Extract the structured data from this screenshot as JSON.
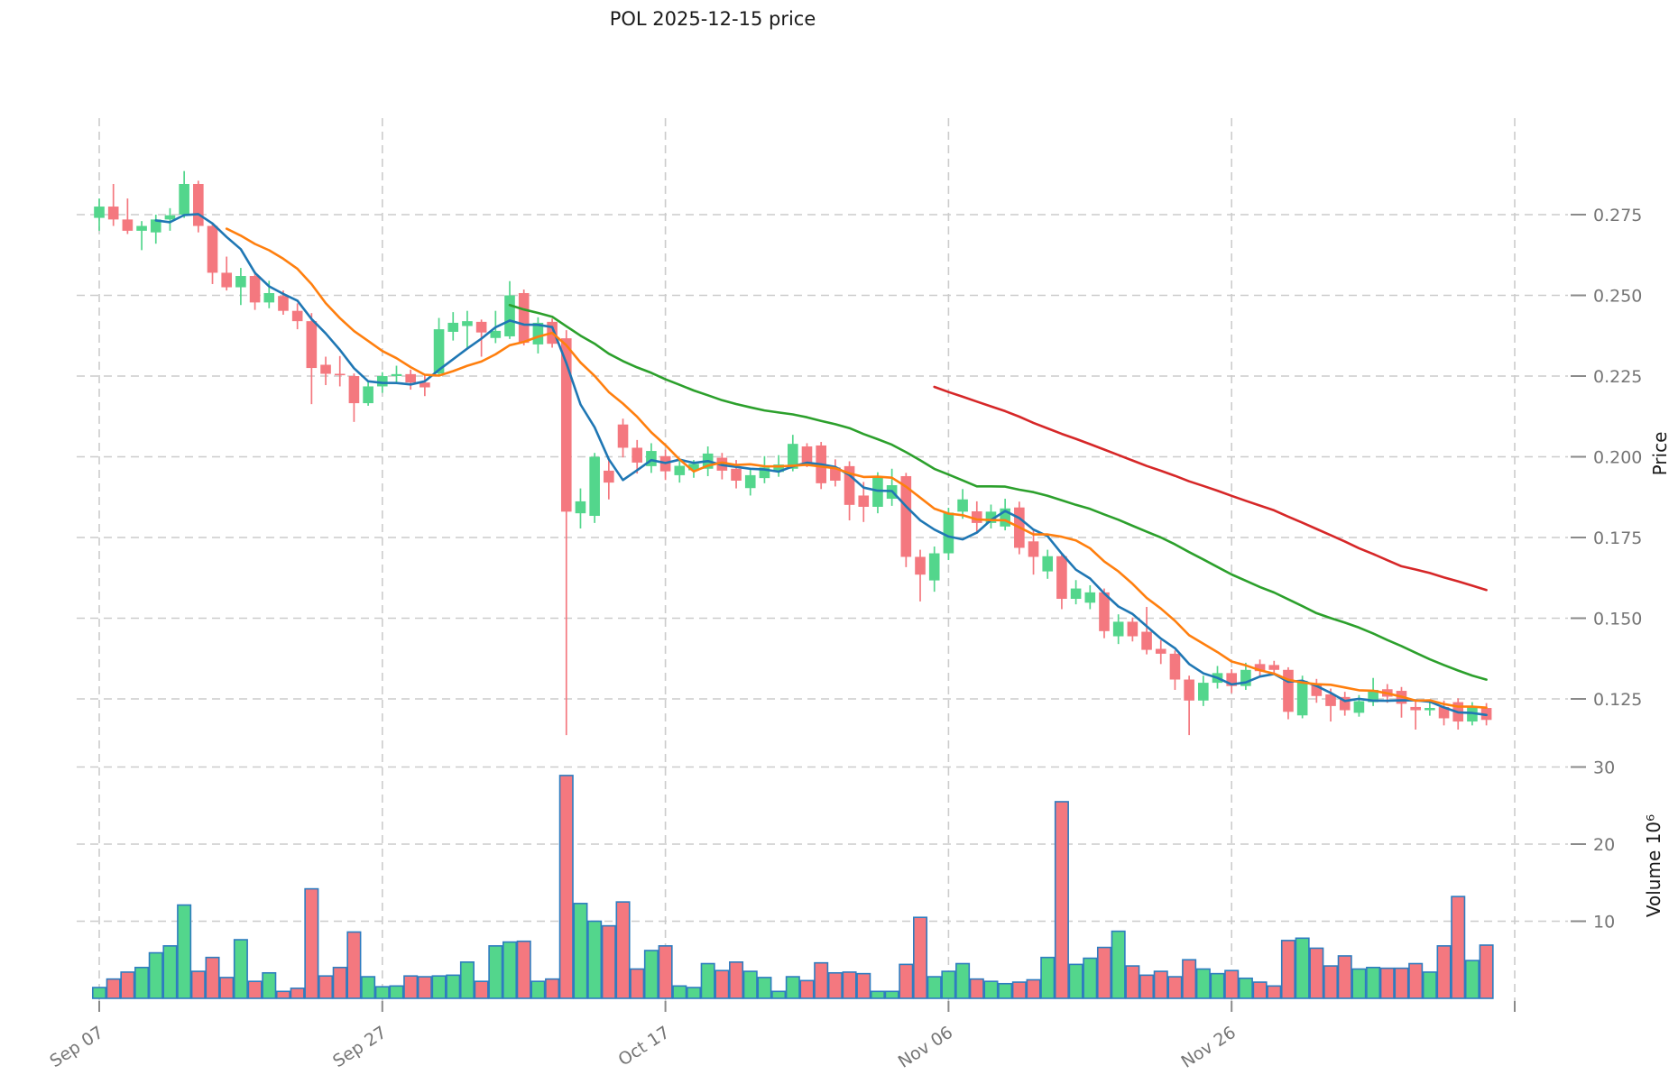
{
  "title": "POL  2025-12-15  price",
  "axes": {
    "price_axis_title": "Price",
    "volume_axis_title": "Volume  10⁶"
  },
  "chart_data": {
    "type": "candlestick-with-volume",
    "symbol": "POL",
    "as_of_date": "2025-12-15",
    "start_date": "2025-09-07",
    "interval": "1d",
    "price_ticks": [
      "0.275",
      "0.250",
      "0.225",
      "0.200",
      "0.175",
      "0.150",
      "0.125"
    ],
    "price_tick_values": [
      0.275,
      0.25,
      0.225,
      0.2,
      0.175,
      0.15,
      0.125
    ],
    "volume_ticks": [
      "10",
      "20",
      "30"
    ],
    "volume_tick_values": [
      10,
      20,
      30
    ],
    "x_ticks": [
      {
        "index": 0,
        "label": "Sep 07"
      },
      {
        "index": 20,
        "label": "Sep 27"
      },
      {
        "index": 40,
        "label": "Oct 17"
      },
      {
        "index": 60,
        "label": "Nov 06"
      },
      {
        "index": 80,
        "label": "Nov 26"
      },
      {
        "index": 100,
        "label": ""
      }
    ],
    "moving_averages": [
      {
        "name": "ma5",
        "window": 5,
        "color": "#1f77b4"
      },
      {
        "name": "ma10",
        "window": 10,
        "color": "#ff7f0e"
      },
      {
        "name": "ma30",
        "window": 30,
        "color": "#2ca02c"
      },
      {
        "name": "ma60",
        "window": 60,
        "color": "#d62728"
      }
    ],
    "colors": {
      "up": "#53d68c",
      "down": "#f4787f",
      "volume_edge": "#2e7cc0",
      "grid": "#cccccc",
      "tick_mark": "#8a8a8a",
      "tick_label": "#757575"
    },
    "ylim_price": [
      0.105,
      0.295
    ],
    "ylim_volume": [
      0,
      32
    ],
    "grid": true,
    "candles_ohlcv": [
      [
        0.274,
        0.28,
        0.27,
        0.2775,
        1.4
      ],
      [
        0.2775,
        0.2845,
        0.2715,
        0.2735,
        2.5
      ],
      [
        0.2735,
        0.28,
        0.269,
        0.27,
        3.4
      ],
      [
        0.27,
        0.273,
        0.264,
        0.2715,
        4.0
      ],
      [
        0.2695,
        0.275,
        0.266,
        0.2735,
        5.9
      ],
      [
        0.2735,
        0.277,
        0.27,
        0.2748,
        6.8
      ],
      [
        0.275,
        0.2885,
        0.274,
        0.2845,
        12.1
      ],
      [
        0.2845,
        0.2855,
        0.2695,
        0.2715,
        3.5
      ],
      [
        0.2715,
        0.2725,
        0.2535,
        0.257,
        5.3
      ],
      [
        0.257,
        0.262,
        0.2515,
        0.2525,
        2.7
      ],
      [
        0.2525,
        0.2585,
        0.247,
        0.256,
        7.6
      ],
      [
        0.256,
        0.2575,
        0.2455,
        0.2478,
        2.2
      ],
      [
        0.2478,
        0.2545,
        0.246,
        0.2507,
        3.3
      ],
      [
        0.2498,
        0.2515,
        0.244,
        0.2452,
        0.9
      ],
      [
        0.2452,
        0.2475,
        0.2395,
        0.242,
        1.3
      ],
      [
        0.242,
        0.2445,
        0.2163,
        0.2275,
        14.2
      ],
      [
        0.2285,
        0.231,
        0.2222,
        0.2257,
        2.9
      ],
      [
        0.2257,
        0.2312,
        0.2218,
        0.2253,
        4.0
      ],
      [
        0.225,
        0.2258,
        0.2108,
        0.2166,
        8.6
      ],
      [
        0.2166,
        0.2232,
        0.2158,
        0.2218,
        2.8
      ],
      [
        0.2218,
        0.2262,
        0.2198,
        0.225,
        1.5
      ],
      [
        0.225,
        0.2282,
        0.2228,
        0.2256,
        1.6
      ],
      [
        0.2256,
        0.227,
        0.2208,
        0.223,
        2.9
      ],
      [
        0.223,
        0.2252,
        0.2188,
        0.2215,
        2.8
      ],
      [
        0.2258,
        0.243,
        0.225,
        0.2395,
        2.9
      ],
      [
        0.2387,
        0.2448,
        0.236,
        0.2415,
        3.0
      ],
      [
        0.2405,
        0.2452,
        0.2338,
        0.242,
        4.7
      ],
      [
        0.2418,
        0.2425,
        0.231,
        0.2385,
        2.2
      ],
      [
        0.2368,
        0.2452,
        0.2352,
        0.239,
        6.8
      ],
      [
        0.2373,
        0.2544,
        0.2365,
        0.25,
        7.3
      ],
      [
        0.2507,
        0.2518,
        0.2345,
        0.2353,
        7.4
      ],
      [
        0.2348,
        0.2432,
        0.232,
        0.2415,
        2.2
      ],
      [
        0.2418,
        0.2428,
        0.2338,
        0.235,
        2.5
      ],
      [
        0.2367,
        0.2392,
        0.1138,
        0.183,
        28.9
      ],
      [
        0.1825,
        0.1902,
        0.1778,
        0.1862,
        12.3
      ],
      [
        0.1817,
        0.2012,
        0.1795,
        0.2,
        10.0
      ],
      [
        0.1957,
        0.1992,
        0.1868,
        0.192,
        9.4
      ],
      [
        0.21,
        0.2118,
        0.1998,
        0.2028,
        12.5
      ],
      [
        0.2028,
        0.2052,
        0.1948,
        0.1982,
        3.8
      ],
      [
        0.1971,
        0.2042,
        0.195,
        0.2018,
        6.2
      ],
      [
        0.2002,
        0.2022,
        0.1928,
        0.1955,
        6.8
      ],
      [
        0.1943,
        0.1992,
        0.192,
        0.1972,
        1.6
      ],
      [
        0.1958,
        0.199,
        0.1935,
        0.1978,
        1.4
      ],
      [
        0.1963,
        0.2032,
        0.194,
        0.201,
        4.5
      ],
      [
        0.1997,
        0.2012,
        0.193,
        0.1957,
        3.6
      ],
      [
        0.1963,
        0.199,
        0.1902,
        0.1926,
        4.7
      ],
      [
        0.1903,
        0.1962,
        0.188,
        0.1943,
        3.5
      ],
      [
        0.1934,
        0.2002,
        0.1918,
        0.1967,
        2.7
      ],
      [
        0.1953,
        0.2005,
        0.1938,
        0.1976,
        0.9
      ],
      [
        0.1963,
        0.2068,
        0.1955,
        0.204,
        2.8
      ],
      [
        0.2032,
        0.2042,
        0.1968,
        0.1982,
        2.3
      ],
      [
        0.2035,
        0.2046,
        0.19,
        0.1918,
        4.6
      ],
      [
        0.1967,
        0.1992,
        0.1908,
        0.1926,
        3.3
      ],
      [
        0.1971,
        0.1986,
        0.1803,
        0.1851,
        3.4
      ],
      [
        0.188,
        0.1922,
        0.1798,
        0.1845,
        3.2
      ],
      [
        0.1845,
        0.1952,
        0.1825,
        0.1935,
        0.9
      ],
      [
        0.187,
        0.1963,
        0.1848,
        0.1912,
        0.9
      ],
      [
        0.194,
        0.195,
        0.1658,
        0.169,
        4.4
      ],
      [
        0.169,
        0.1712,
        0.1552,
        0.1635,
        10.5
      ],
      [
        0.1617,
        0.1722,
        0.1582,
        0.1701,
        2.8
      ],
      [
        0.1701,
        0.1842,
        0.168,
        0.1827,
        3.5
      ],
      [
        0.183,
        0.19,
        0.1808,
        0.1868,
        4.5
      ],
      [
        0.1831,
        0.1862,
        0.1768,
        0.1795,
        2.5
      ],
      [
        0.1795,
        0.1852,
        0.1778,
        0.183,
        2.2
      ],
      [
        0.1784,
        0.187,
        0.1772,
        0.184,
        1.9
      ],
      [
        0.1843,
        0.1861,
        0.1698,
        0.1718,
        2.1
      ],
      [
        0.1738,
        0.1772,
        0.1635,
        0.169,
        2.4
      ],
      [
        0.1645,
        0.1712,
        0.1622,
        0.1692,
        5.3
      ],
      [
        0.1692,
        0.17,
        0.1528,
        0.156,
        25.5
      ],
      [
        0.156,
        0.1618,
        0.1543,
        0.1592,
        4.4
      ],
      [
        0.1548,
        0.1602,
        0.1528,
        0.158,
        5.2
      ],
      [
        0.158,
        0.1592,
        0.1438,
        0.146,
        6.6
      ],
      [
        0.1444,
        0.1512,
        0.142,
        0.1489,
        8.7
      ],
      [
        0.1489,
        0.1502,
        0.1428,
        0.1444,
        4.2
      ],
      [
        0.1458,
        0.1535,
        0.1388,
        0.1402,
        3.0
      ],
      [
        0.1405,
        0.1432,
        0.1358,
        0.139,
        3.5
      ],
      [
        0.139,
        0.14,
        0.1278,
        0.131,
        2.8
      ],
      [
        0.131,
        0.1322,
        0.1138,
        0.1245,
        5.0
      ],
      [
        0.1245,
        0.1322,
        0.1228,
        0.13,
        3.8
      ],
      [
        0.13,
        0.1352,
        0.1282,
        0.133,
        3.2
      ],
      [
        0.133,
        0.1342,
        0.1268,
        0.129,
        3.6
      ],
      [
        0.129,
        0.1362,
        0.1278,
        0.134,
        2.6
      ],
      [
        0.1358,
        0.1372,
        0.1318,
        0.1336,
        2.1
      ],
      [
        0.1355,
        0.1368,
        0.1328,
        0.134,
        1.6
      ],
      [
        0.134,
        0.1348,
        0.1187,
        0.121,
        7.5
      ],
      [
        0.1199,
        0.1322,
        0.119,
        0.1306,
        7.8
      ],
      [
        0.1298,
        0.1312,
        0.1238,
        0.1259,
        6.5
      ],
      [
        0.1264,
        0.1282,
        0.118,
        0.1228,
        4.2
      ],
      [
        0.1256,
        0.1272,
        0.1198,
        0.1215,
        5.5
      ],
      [
        0.1207,
        0.1262,
        0.1195,
        0.1243,
        3.8
      ],
      [
        0.124,
        0.1315,
        0.1228,
        0.1278,
        4.0
      ],
      [
        0.128,
        0.1296,
        0.1238,
        0.1257,
        3.9
      ],
      [
        0.1275,
        0.1287,
        0.1192,
        0.1235,
        3.9
      ],
      [
        0.1225,
        0.1242,
        0.1155,
        0.1215,
        4.5
      ],
      [
        0.1215,
        0.1242,
        0.1198,
        0.1222,
        3.4
      ],
      [
        0.1225,
        0.1245,
        0.1168,
        0.119,
        6.8
      ],
      [
        0.124,
        0.1252,
        0.1155,
        0.118,
        13.2
      ],
      [
        0.118,
        0.124,
        0.1168,
        0.1225,
        4.9
      ],
      [
        0.1222,
        0.1237,
        0.1168,
        0.1185,
        6.9
      ]
    ]
  }
}
